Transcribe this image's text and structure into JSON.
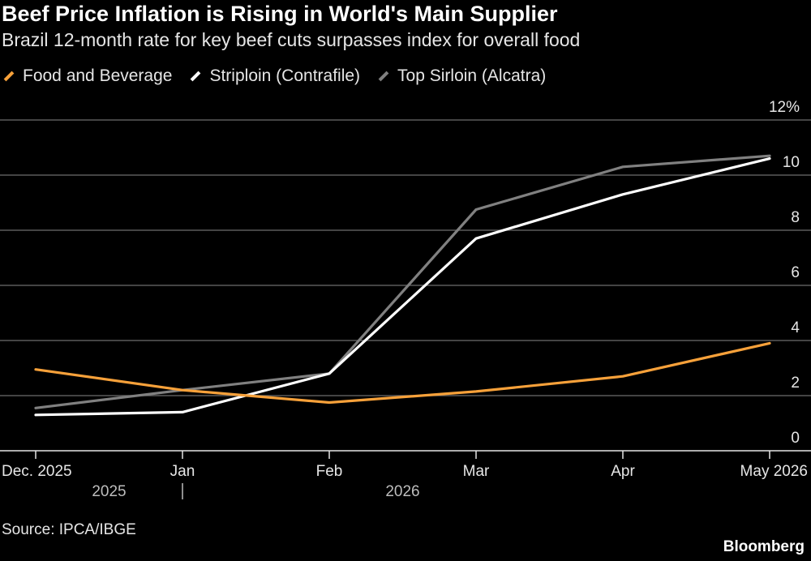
{
  "header": {
    "title": "Beef Price Inflation is Rising in World's Main Supplier",
    "subtitle": "Brazil 12-month rate for key beef cuts surpasses index for overall food"
  },
  "footer": {
    "source": "Source: IPCA/IBGE",
    "brand": "Bloomberg"
  },
  "colors": {
    "background": "#000000",
    "grid": "#5a5a5a",
    "axis": "#e6e6e6"
  },
  "chart_data": {
    "type": "line",
    "title": "Beef Price Inflation is Rising in World's Main Supplier",
    "subtitle": "Brazil 12-month rate for key beef cuts surpasses index for overall food",
    "x": [
      "Dec. 2025",
      "Jan",
      "Feb",
      "Mar",
      "Apr",
      "May 2026"
    ],
    "x_group_labels": [
      {
        "label": "2025",
        "between": [
          0,
          1
        ]
      },
      {
        "label": "2026",
        "between": [
          2,
          3
        ]
      }
    ],
    "y_ticks": [
      "0",
      "2",
      "4",
      "6",
      "8",
      "10",
      "12%"
    ],
    "ylim": [
      0,
      12
    ],
    "grid": true,
    "legend": "top-left",
    "series": [
      {
        "name": "Food and Beverage",
        "color": "#f7a13a",
        "values": [
          2.95,
          2.2,
          1.75,
          2.15,
          2.7,
          3.9
        ]
      },
      {
        "name": "Striploin (Contrafile)",
        "color": "#ffffff",
        "values": [
          1.3,
          1.4,
          2.8,
          7.7,
          9.3,
          10.6
        ]
      },
      {
        "name": "Top Sirloin (Alcatra)",
        "color": "#808080",
        "values": [
          1.55,
          2.2,
          2.8,
          8.75,
          10.3,
          10.7
        ]
      }
    ]
  }
}
